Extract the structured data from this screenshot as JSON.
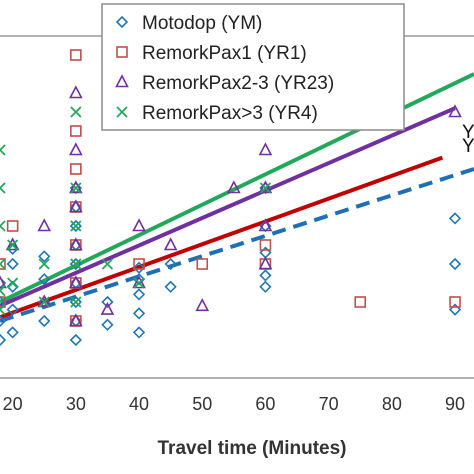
{
  "chart_data": {
    "type": "scatter",
    "xlabel": "Travel time (Minutes)",
    "ylabel": "",
    "xlim": [
      18,
      93
    ],
    "ylim": [
      0,
      9
    ],
    "xticks": [
      20,
      30,
      40,
      50,
      60,
      70,
      80,
      90
    ],
    "grid": false,
    "legend_position": "top",
    "series": [
      {
        "name": "Motodop (YM)",
        "marker": "diamond",
        "color": "#1f77b4",
        "points": [
          [
            18,
            1.0
          ],
          [
            18,
            1.5
          ],
          [
            18,
            2.0
          ],
          [
            18,
            2.5
          ],
          [
            20,
            1.2
          ],
          [
            20,
            1.8
          ],
          [
            20,
            2.4
          ],
          [
            20,
            3.0
          ],
          [
            20,
            3.4
          ],
          [
            25,
            1.5
          ],
          [
            25,
            2.0
          ],
          [
            25,
            2.6
          ],
          [
            25,
            3.2
          ],
          [
            30,
            1.0
          ],
          [
            30,
            1.5
          ],
          [
            30,
            2.0
          ],
          [
            30,
            2.5
          ],
          [
            30,
            3.0
          ],
          [
            30,
            3.5
          ],
          [
            30,
            4.0
          ],
          [
            30,
            4.5
          ],
          [
            30,
            5.0
          ],
          [
            35,
            1.4
          ],
          [
            35,
            2.0
          ],
          [
            40,
            1.2
          ],
          [
            40,
            1.7
          ],
          [
            40,
            2.2
          ],
          [
            40,
            2.6
          ],
          [
            40,
            2.9
          ],
          [
            45,
            2.4
          ],
          [
            45,
            3.0
          ],
          [
            60,
            2.4
          ],
          [
            60,
            2.7
          ],
          [
            60,
            3.3
          ],
          [
            60,
            4.0
          ],
          [
            60,
            5.0
          ],
          [
            90,
            1.8
          ],
          [
            90,
            3.0
          ],
          [
            90,
            4.2
          ]
        ]
      },
      {
        "name": "RemorkPax1 (YR1)",
        "marker": "square",
        "color": "#c0504d",
        "points": [
          [
            18,
            2.0
          ],
          [
            18,
            3.0
          ],
          [
            20,
            4.0
          ],
          [
            30,
            1.5
          ],
          [
            30,
            2.5
          ],
          [
            30,
            3.5
          ],
          [
            30,
            4.5
          ],
          [
            30,
            5.5
          ],
          [
            30,
            6.5
          ],
          [
            30,
            8.5
          ],
          [
            40,
            3.0
          ],
          [
            50,
            3.0
          ],
          [
            60,
            3.0
          ],
          [
            60,
            3.5
          ],
          [
            60,
            7.0
          ],
          [
            75,
            2.0
          ],
          [
            90,
            2.0
          ]
        ]
      },
      {
        "name": "RemorkPax2-3 (YR23)",
        "marker": "triangle",
        "color": "#7030a0",
        "points": [
          [
            18,
            2.5
          ],
          [
            20,
            3.5
          ],
          [
            25,
            2.0
          ],
          [
            25,
            4.0
          ],
          [
            30,
            1.5
          ],
          [
            30,
            2.5
          ],
          [
            30,
            3.5
          ],
          [
            30,
            4.5
          ],
          [
            30,
            5.0
          ],
          [
            30,
            6.0
          ],
          [
            30,
            7.5
          ],
          [
            35,
            1.8
          ],
          [
            40,
            2.5
          ],
          [
            40,
            4.0
          ],
          [
            45,
            3.5
          ],
          [
            50,
            1.9
          ],
          [
            55,
            5.0
          ],
          [
            60,
            3.0
          ],
          [
            60,
            4.0
          ],
          [
            60,
            5.0
          ],
          [
            60,
            6.0
          ],
          [
            60,
            7.0
          ],
          [
            90,
            7.0
          ]
        ]
      },
      {
        "name": "RemorkPax>3 (YR4)",
        "marker": "x",
        "color": "#22a85a",
        "points": [
          [
            18,
            1.8
          ],
          [
            18,
            2.3
          ],
          [
            18,
            3.0
          ],
          [
            18,
            4.0
          ],
          [
            18,
            5.0
          ],
          [
            18,
            6.0
          ],
          [
            20,
            2.5
          ],
          [
            20,
            3.5
          ],
          [
            25,
            2.0
          ],
          [
            25,
            3.0
          ],
          [
            30,
            2.0
          ],
          [
            30,
            3.0
          ],
          [
            30,
            4.0
          ],
          [
            30,
            5.0
          ],
          [
            30,
            7.0
          ],
          [
            35,
            3.0
          ],
          [
            40,
            2.5
          ],
          [
            45,
            7.0
          ],
          [
            60,
            7.0
          ],
          [
            60,
            5.0
          ]
        ]
      }
    ],
    "trendlines": [
      {
        "series": "RemorkPax>3 (YR4)",
        "style": "solid",
        "color": "#22a85a",
        "x": [
          18,
          93
        ],
        "y": [
          2.0,
          8.0
        ],
        "label": "Y"
      },
      {
        "series": "RemorkPax2-3 (YR23)",
        "style": "solid",
        "color": "#7030a0",
        "x": [
          18,
          90
        ],
        "y": [
          1.9,
          7.1
        ],
        "label": "Y"
      },
      {
        "series": "RemorkPax1 (YR1)",
        "style": "solid",
        "color": "#c00000",
        "x": [
          18,
          88
        ],
        "y": [
          1.6,
          5.8
        ],
        "label": ""
      },
      {
        "series": "Motodop (YM)",
        "style": "dashed",
        "color": "#1f6fb4",
        "x": [
          18,
          93
        ],
        "y": [
          1.5,
          5.5
        ],
        "label": ""
      }
    ]
  }
}
